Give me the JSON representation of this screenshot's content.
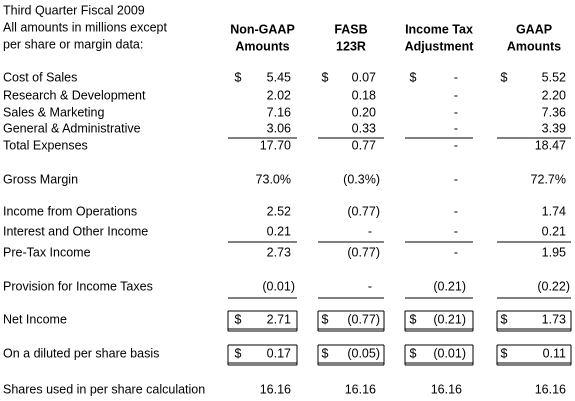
{
  "header": {
    "title_lines": [
      "Third Quarter Fiscal 2009",
      "All amounts in millions except",
      "per share or margin data:"
    ],
    "columns": [
      [
        "Non-GAAP",
        "Amounts"
      ],
      [
        "FASB",
        "123R"
      ],
      [
        "Income Tax",
        "Adjustment"
      ],
      [
        "GAAP",
        "Amounts"
      ]
    ]
  },
  "table": {
    "rows": [
      {
        "label": "Cost of Sales",
        "currency": "$",
        "values": [
          "5.45",
          "0.07",
          "-",
          "5.52"
        ]
      },
      {
        "label": "Research & Development",
        "values": [
          "2.02",
          "0.18",
          "-",
          "2.20"
        ]
      },
      {
        "label": "Sales & Marketing",
        "values": [
          "7.16",
          "0.20",
          "-",
          "7.36"
        ]
      },
      {
        "label": "General & Administrative",
        "values": [
          "3.06",
          "0.33",
          "-",
          "3.39"
        ]
      },
      {
        "label": "Total Expenses",
        "values": [
          "17.70",
          "0.77",
          "-",
          "18.47"
        ]
      },
      {
        "label": "Gross Margin",
        "values": [
          "73.0%",
          "(0.3%)",
          "-",
          "72.7%"
        ]
      },
      {
        "label": "Income from Operations",
        "values": [
          "2.52",
          "(0.77)",
          "-",
          "1.74"
        ]
      },
      {
        "label": "Interest and Other Income",
        "values": [
          "0.21",
          "-",
          "-",
          "0.21"
        ]
      },
      {
        "label": "Pre-Tax Income",
        "values": [
          "2.73",
          "(0.77)",
          "-",
          "1.95"
        ]
      },
      {
        "label": "Provision for Income Taxes",
        "values": [
          "(0.01)",
          "-",
          "(0.21)",
          "(0.22)"
        ]
      },
      {
        "label": "Net Income",
        "currency": "$",
        "values": [
          "2.71",
          "(0.77)",
          "(0.21)",
          "1.73"
        ]
      },
      {
        "label": "On a diluted per share basis",
        "currency": "$",
        "values": [
          "0.17",
          "(0.05)",
          "(0.01)",
          "0.11"
        ]
      },
      {
        "label": "Shares used in per share calculation",
        "values": [
          "16.16",
          "16.16",
          "16.16",
          "16.16"
        ]
      }
    ]
  }
}
